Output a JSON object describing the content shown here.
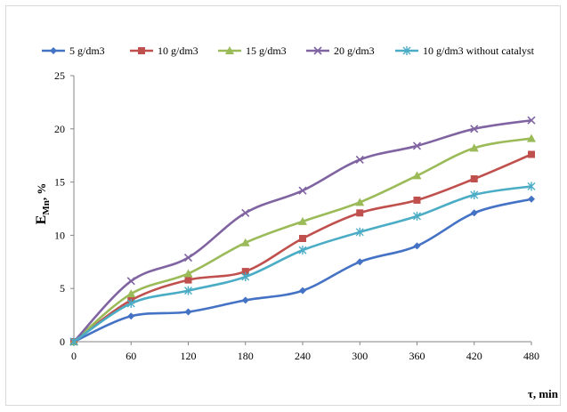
{
  "chart_data": {
    "type": "line",
    "x": [
      0,
      60,
      120,
      180,
      240,
      300,
      360,
      420,
      480
    ],
    "xlabel": "τ, min",
    "ylabel_main": "E",
    "ylabel_sub": "Mn",
    "ylabel_unit": ", %",
    "ylim": [
      0,
      25
    ],
    "yticks": [
      0,
      5,
      10,
      15,
      20,
      25
    ],
    "xlim": [
      0,
      480
    ],
    "grid": false,
    "legend_position": "top",
    "series": [
      {
        "name": "5 g/dm3",
        "color": "#4472c4",
        "marker": "diamond",
        "values": [
          0,
          2.4,
          2.8,
          3.9,
          4.8,
          7.5,
          9.0,
          12.1,
          13.4
        ]
      },
      {
        "name": "10 g/dm3",
        "color": "#c0504d",
        "marker": "square",
        "values": [
          0,
          3.9,
          5.8,
          6.6,
          9.7,
          12.1,
          13.3,
          15.3,
          17.6
        ]
      },
      {
        "name": "15 g/dm3",
        "color": "#9bbb59",
        "marker": "triangle",
        "values": [
          0,
          4.5,
          6.4,
          9.3,
          11.3,
          13.1,
          15.6,
          18.2,
          19.1
        ]
      },
      {
        "name": "20 g/dm3",
        "color": "#8064a2",
        "marker": "x",
        "values": [
          0,
          5.7,
          7.9,
          12.1,
          14.2,
          17.1,
          18.4,
          20.0,
          20.8
        ]
      },
      {
        "name": "10 g/dm3 without catalyst",
        "color": "#4bacc6",
        "marker": "star",
        "values": [
          0,
          3.6,
          4.8,
          6.1,
          8.6,
          10.3,
          11.8,
          13.8,
          14.6
        ]
      }
    ]
  }
}
